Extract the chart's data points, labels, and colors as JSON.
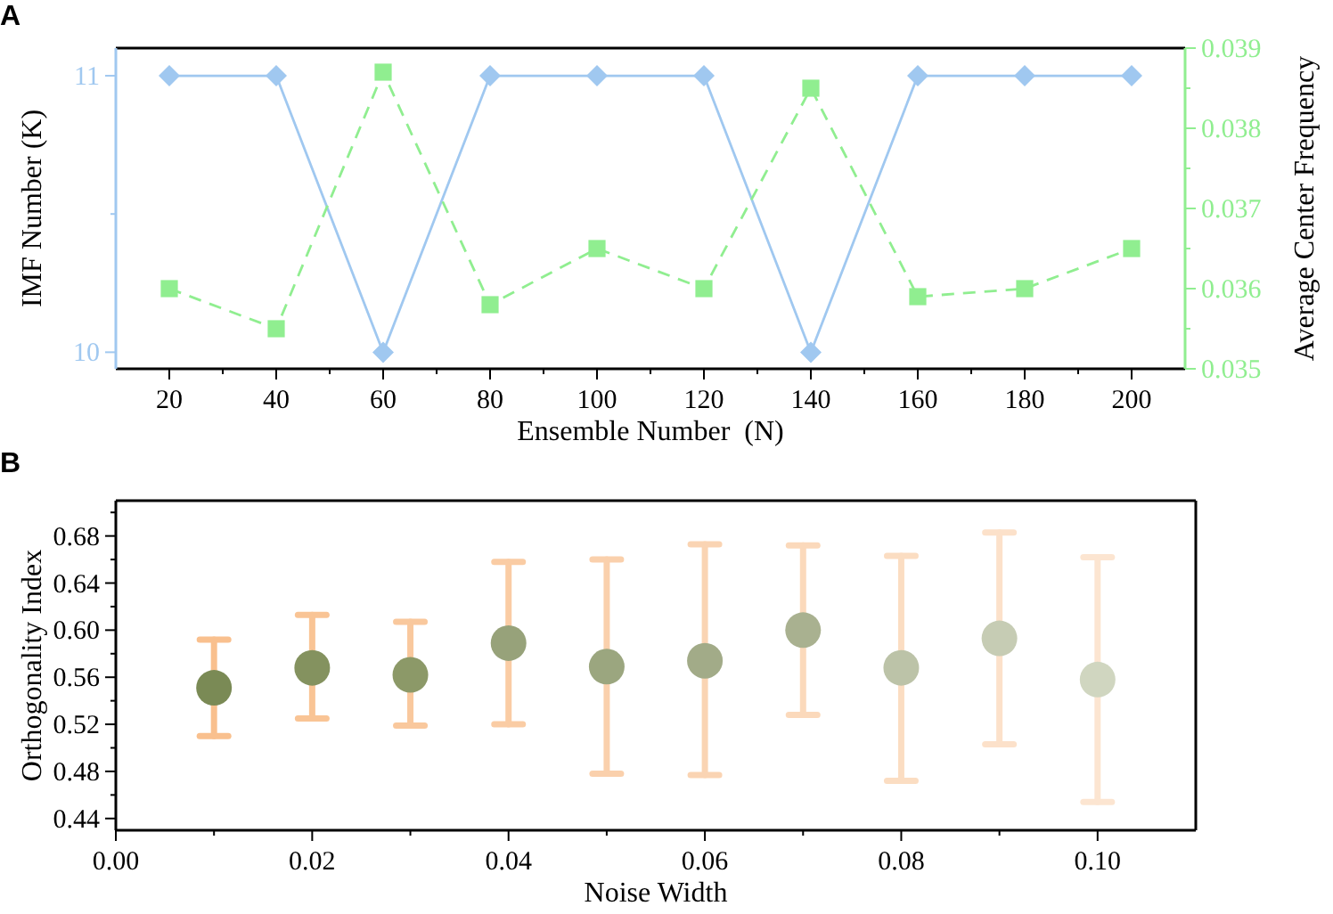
{
  "chart_data": [
    {
      "type": "line",
      "title": "A",
      "xlabel": "Ensemble Number  (N)",
      "ylabel": "IMF Number (K)",
      "y2label": "Average Center Frequency",
      "x": [
        20,
        40,
        60,
        80,
        100,
        120,
        140,
        160,
        180,
        200
      ],
      "xlim": [
        10,
        210
      ],
      "xticks": [
        20,
        {
          "value": 30,
          "label": null
        },
        40,
        {
          "value": 50,
          "label": null
        },
        60,
        {
          "value": 70,
          "label": null
        },
        80,
        {
          "value": 90,
          "label": null
        },
        100,
        {
          "value": 110,
          "label": null
        },
        120,
        {
          "value": 130,
          "label": null
        },
        140,
        {
          "value": 150,
          "label": null
        },
        160,
        {
          "value": 170,
          "label": null
        },
        180,
        {
          "value": 190,
          "label": null
        },
        200
      ],
      "ylim": [
        9.94,
        11.1
      ],
      "yticks": [
        10,
        {
          "value": 10.5,
          "label": null
        },
        11
      ],
      "y2lim": [
        0.035,
        0.039
      ],
      "y2ticks": [
        0.035,
        {
          "value": 0.0355,
          "label": null
        },
        0.036,
        {
          "value": 0.0365,
          "label": null
        },
        0.037,
        {
          "value": 0.0375,
          "label": null
        },
        0.038,
        {
          "value": 0.0385,
          "label": null
        },
        0.039
      ],
      "grid": false,
      "series": [
        {
          "color": "#a0c8f0",
          "marker": "diamond",
          "line_style": "solid",
          "values": [
            11,
            11,
            10,
            11,
            11,
            11,
            10,
            11,
            11,
            11
          ]
        },
        {
          "color": "#90ee90",
          "marker": "square",
          "line_style": "dashed",
          "axis": "y2",
          "values": [
            0.036,
            0.0355,
            0.0387,
            0.0358,
            0.0365,
            0.036,
            0.0385,
            0.0359,
            0.036,
            0.0365
          ]
        }
      ]
    },
    {
      "type": "scatter",
      "title": "B",
      "xlabel": "Noise Width",
      "ylabel": "Orthogonality Index",
      "x": [
        0.01,
        0.02,
        0.03,
        0.04,
        0.05,
        0.06,
        0.07,
        0.08,
        0.09,
        0.1
      ],
      "xlim": [
        0,
        0.11
      ],
      "xticks": [
        {
          "value": 0,
          "label": "0.00"
        },
        {
          "value": 0.01,
          "label": null
        },
        0.02,
        {
          "value": 0.03,
          "label": null
        },
        0.04,
        {
          "value": 0.05,
          "label": null
        },
        0.06,
        {
          "value": 0.07,
          "label": null
        },
        0.08,
        {
          "value": 0.09,
          "label": null
        },
        {
          "value": 0.1,
          "label": "0.10"
        }
      ],
      "ylim": [
        0.43,
        0.71
      ],
      "yticks": [
        0.44,
        {
          "value": 0.46,
          "label": null
        },
        0.48,
        {
          "value": 0.5,
          "label": null
        },
        0.52,
        {
          "value": 0.54,
          "label": null
        },
        0.56,
        {
          "value": 0.58,
          "label": null
        },
        {
          "value": 0.6,
          "label": "0.60"
        },
        {
          "value": 0.62,
          "label": null
        },
        0.64,
        {
          "value": 0.66,
          "label": null
        },
        0.68,
        {
          "value": 0.7,
          "label": null
        }
      ],
      "grid": false,
      "marker": "circle",
      "series": [
        {
          "color": "#f9c08e",
          "colors": [
            "#7a8a55",
            "#84925f",
            "#8c9968",
            "#97a27a",
            "#9ba67f",
            "#a2ab88",
            "#a9b190",
            "#bcc3a8",
            "#c6ccb4",
            "#d0d6c0"
          ],
          "values": [
            0.551,
            0.568,
            0.562,
            0.589,
            0.569,
            0.574,
            0.6,
            0.568,
            0.593,
            0.558
          ],
          "errors": [
            [
              0.51,
              0.592
            ],
            [
              0.525,
              0.613
            ],
            [
              0.519,
              0.607
            ],
            [
              0.52,
              0.658
            ],
            [
              0.478,
              0.66
            ],
            [
              0.477,
              0.673
            ],
            [
              0.528,
              0.672
            ],
            [
              0.472,
              0.663
            ],
            [
              0.503,
              0.683
            ],
            [
              0.454,
              0.662
            ]
          ]
        }
      ]
    }
  ]
}
